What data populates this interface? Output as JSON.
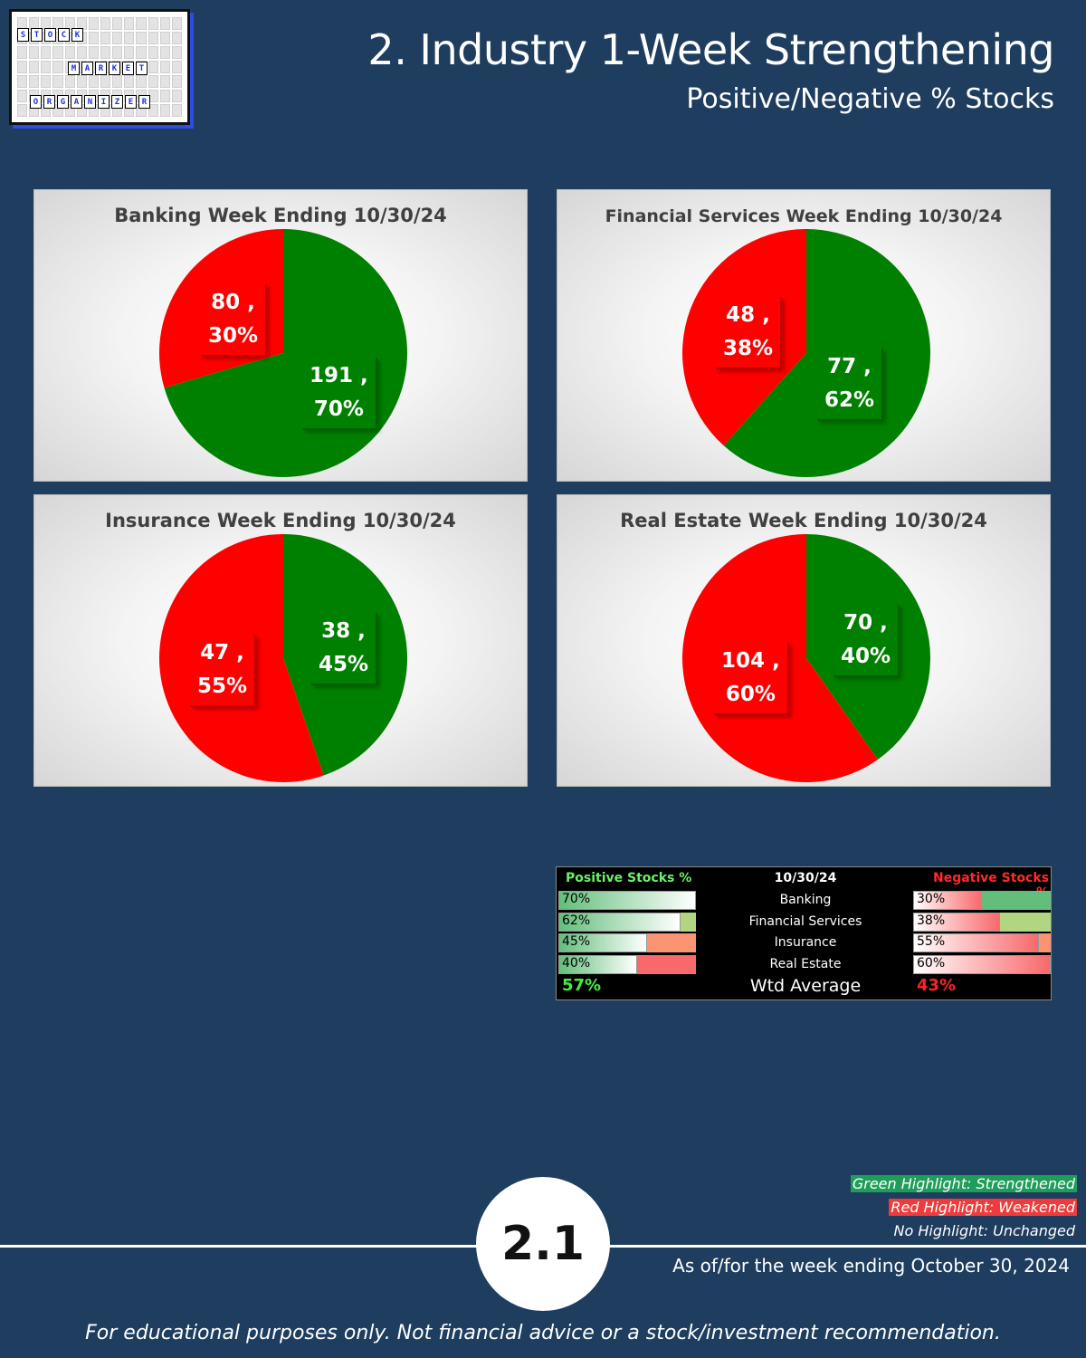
{
  "logo": {
    "line1": [
      "S",
      "T",
      "O",
      "C",
      "K"
    ],
    "line2": [
      "M",
      "A",
      "R",
      "K",
      "E",
      "T"
    ],
    "line3": [
      "O",
      "R",
      "G",
      "A",
      "N",
      "I",
      "Z",
      "E",
      "R"
    ]
  },
  "header": {
    "title": "2. Industry 1-Week Strengthening",
    "subtitle": "Positive/Negative % Stocks"
  },
  "colors": {
    "positive": "#008000",
    "negative": "#ff0000",
    "background": "#1e3d5f"
  },
  "chart_data": [
    {
      "type": "pie",
      "title": "Banking Week Ending 10/30/24",
      "slices": [
        {
          "label": "Positive",
          "value": 191,
          "percent": "70%",
          "color": "#008000"
        },
        {
          "label": "Negative",
          "value": 80,
          "percent": "30%",
          "color": "#ff0000"
        }
      ],
      "labels": [
        {
          "text1": "191 ,",
          "text2": "70%"
        },
        {
          "text1": "80 ,",
          "text2": "30%"
        }
      ]
    },
    {
      "type": "pie",
      "title": "Financial Services Week Ending 10/30/24",
      "slices": [
        {
          "label": "Positive",
          "value": 77,
          "percent": "62%",
          "color": "#008000"
        },
        {
          "label": "Negative",
          "value": 48,
          "percent": "38%",
          "color": "#ff0000"
        }
      ],
      "labels": [
        {
          "text1": "77 ,",
          "text2": "62%"
        },
        {
          "text1": "48 ,",
          "text2": "38%"
        }
      ]
    },
    {
      "type": "pie",
      "title": "Insurance Week Ending 10/30/24",
      "slices": [
        {
          "label": "Positive",
          "value": 38,
          "percent": "45%",
          "color": "#008000"
        },
        {
          "label": "Negative",
          "value": 47,
          "percent": "55%",
          "color": "#ff0000"
        }
      ],
      "labels": [
        {
          "text1": "38 ,",
          "text2": "45%"
        },
        {
          "text1": "47 ,",
          "text2": "55%"
        }
      ]
    },
    {
      "type": "pie",
      "title": "Real Estate Week Ending 10/30/24",
      "slices": [
        {
          "label": "Positive",
          "value": 70,
          "percent": "40%",
          "color": "#008000"
        },
        {
          "label": "Negative",
          "value": 104,
          "percent": "60%",
          "color": "#ff0000"
        }
      ],
      "labels": [
        {
          "text1": "70 ,",
          "text2": "40%"
        },
        {
          "text1": "104 ,",
          "text2": "60%"
        }
      ]
    },
    {
      "type": "table",
      "columns": [
        "Positive Stocks %",
        "10/30/24",
        "Negative Stocks %"
      ],
      "rows": [
        {
          "name": "Banking",
          "pos": "70%",
          "pos_value": 70,
          "pos_bg": "#ffffff",
          "neg": "30%",
          "neg_value": 30,
          "neg_bg": "#63be7b"
        },
        {
          "name": "Financial Services",
          "pos": "62%",
          "pos_value": 62,
          "pos_bg": "#b1d580",
          "neg": "38%",
          "neg_value": 38,
          "neg_bg": "#b1d580"
        },
        {
          "name": "Insurance",
          "pos": "45%",
          "pos_value": 45,
          "pos_bg": "#fa9473",
          "neg": "55%",
          "neg_value": 55,
          "neg_bg": "#fa9473"
        },
        {
          "name": "Real Estate",
          "pos": "40%",
          "pos_value": 40,
          "pos_bg": "#f8696b",
          "neg": "60%",
          "neg_value": 60,
          "neg_bg": "#ffffff"
        }
      ],
      "average_label": "Wtd Average",
      "average_pos": "57%",
      "average_neg": "43%"
    }
  ],
  "legend": {
    "green": "Green Highlight: Strengthened",
    "red": "Red Highlight: Weakened",
    "none": "No Highlight: Unchanged"
  },
  "footer": {
    "page_number": "2.1",
    "as_of": "As of/for the week ending October 30, 2024",
    "disclaimer": "For educational purposes only. Not financial advice or a stock/investment recommendation."
  }
}
